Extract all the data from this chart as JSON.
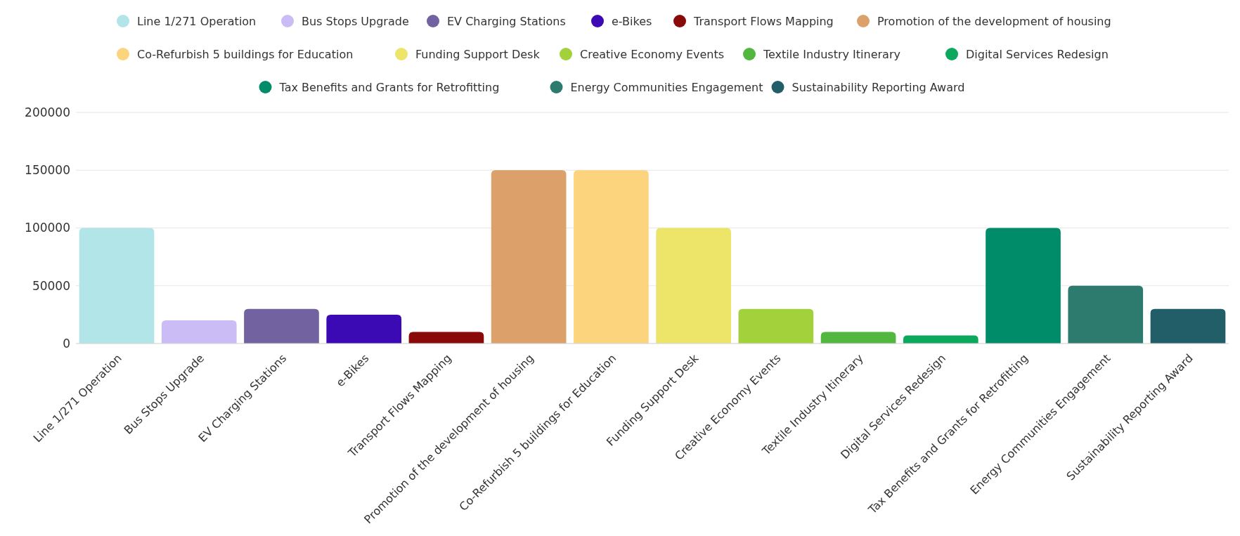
{
  "chart_data": {
    "type": "bar",
    "categories": [
      "Line 1/271 Operation",
      "Bus Stops Upgrade",
      "EV Charging Stations",
      "e-Bikes",
      "Transport Flows Mapping",
      "Promotion of the development of housing",
      "Co-Refurbish 5 buildings for Education",
      "Funding Support Desk",
      "Creative Economy Events",
      "Textile Industry Itinerary",
      "Digital Services Redesign",
      "Tax Benefits and Grants for Retrofitting",
      "Energy Communities Engagement",
      "Sustainability Reporting Award"
    ],
    "series": [
      {
        "name": "Line 1/271 Operation",
        "color": "#b2e5e8",
        "values": [
          100000,
          null,
          null,
          null,
          null,
          null,
          null,
          null,
          null,
          null,
          null,
          null,
          null,
          null
        ]
      },
      {
        "name": "Bus Stops Upgrade",
        "color": "#cbbcf5",
        "values": [
          null,
          20000,
          null,
          null,
          null,
          null,
          null,
          null,
          null,
          null,
          null,
          null,
          null,
          null
        ]
      },
      {
        "name": "EV Charging Stations",
        "color": "#7262a0",
        "values": [
          null,
          null,
          30000,
          null,
          null,
          null,
          null,
          null,
          null,
          null,
          null,
          null,
          null,
          null
        ]
      },
      {
        "name": "e-Bikes",
        "color": "#3c0ab5",
        "values": [
          null,
          null,
          null,
          25000,
          null,
          null,
          null,
          null,
          null,
          null,
          null,
          null,
          null,
          null
        ]
      },
      {
        "name": "Transport Flows Mapping",
        "color": "#8a0a0a",
        "values": [
          null,
          null,
          null,
          null,
          10000,
          null,
          null,
          null,
          null,
          null,
          null,
          null,
          null,
          null
        ]
      },
      {
        "name": "Promotion of the development of housing",
        "color": "#dca16a",
        "values": [
          null,
          null,
          null,
          null,
          null,
          150000,
          null,
          null,
          null,
          null,
          null,
          null,
          null,
          null
        ]
      },
      {
        "name": "Co-Refurbish 5 buildings for Education",
        "color": "#fdd47e",
        "values": [
          null,
          null,
          null,
          null,
          null,
          null,
          150000,
          null,
          null,
          null,
          null,
          null,
          null,
          null
        ]
      },
      {
        "name": "Funding Support Desk",
        "color": "#ede46a",
        "values": [
          null,
          null,
          null,
          null,
          null,
          null,
          null,
          100000,
          null,
          null,
          null,
          null,
          null,
          null
        ]
      },
      {
        "name": "Creative Economy Events",
        "color": "#a3d13b",
        "values": [
          null,
          null,
          null,
          null,
          null,
          null,
          null,
          null,
          30000,
          null,
          null,
          null,
          null,
          null
        ]
      },
      {
        "name": "Textile Industry Itinerary",
        "color": "#52b73f",
        "values": [
          null,
          null,
          null,
          null,
          null,
          null,
          null,
          null,
          null,
          10000,
          null,
          null,
          null,
          null
        ]
      },
      {
        "name": "Digital Services Redesign",
        "color": "#0ba85e",
        "values": [
          null,
          null,
          null,
          null,
          null,
          null,
          null,
          null,
          null,
          null,
          7000,
          null,
          null,
          null
        ]
      },
      {
        "name": "Tax Benefits and Grants for Retrofitting",
        "color": "#008c69",
        "values": [
          null,
          null,
          null,
          null,
          null,
          null,
          null,
          null,
          null,
          null,
          null,
          100000,
          null,
          null
        ]
      },
      {
        "name": "Energy Communities Engagement",
        "color": "#2d7a6f",
        "values": [
          null,
          null,
          null,
          null,
          null,
          null,
          null,
          null,
          null,
          null,
          null,
          null,
          50000,
          null
        ]
      },
      {
        "name": "Sustainability Reporting Award",
        "color": "#225e68",
        "values": [
          null,
          null,
          null,
          null,
          null,
          null,
          null,
          null,
          null,
          null,
          null,
          null,
          null,
          30000
        ]
      }
    ],
    "ylim": [
      0,
      200000
    ],
    "yticks": [
      0,
      50000,
      100000,
      150000,
      200000
    ],
    "grid": "y",
    "legend": "top"
  }
}
